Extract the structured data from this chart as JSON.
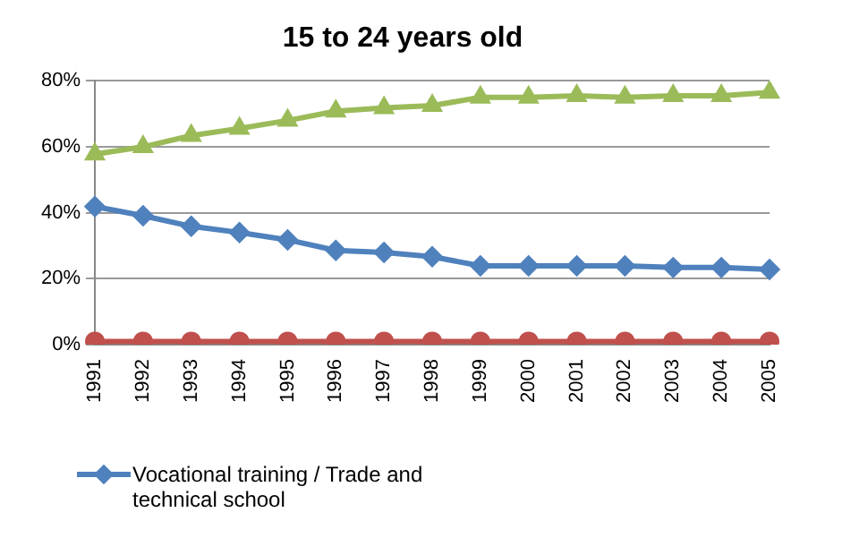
{
  "chart_data": {
    "type": "line",
    "title": "15 to 24 years old",
    "categories": [
      "1991",
      "1992",
      "1993",
      "1994",
      "1995",
      "1996",
      "1997",
      "1998",
      "1999",
      "2000",
      "2001",
      "2002",
      "2003",
      "2004",
      "2005"
    ],
    "series": [
      {
        "name": "Vocational training / Trade and technical school",
        "color": "#4f81bd",
        "marker": "diamond",
        "values": [
          41.9,
          39.1,
          35.9,
          34,
          31.8,
          28.6,
          28,
          26.7,
          23.9,
          23.9,
          23.9,
          23.9,
          23.4,
          23.4,
          22.8
        ]
      },
      {
        "color": "#c0504d",
        "marker": "circle",
        "values": [
          1,
          1,
          1,
          1,
          1,
          1,
          1,
          1,
          1,
          1,
          1,
          1,
          1,
          1,
          1
        ]
      },
      {
        "color": "#9bbb59",
        "marker": "triangle",
        "values": [
          57.8,
          60,
          63.4,
          65.6,
          68,
          70.8,
          71.8,
          72.5,
          75,
          75,
          75.5,
          75,
          75.5,
          75.5,
          76.5
        ]
      }
    ],
    "ylim": [
      0,
      80
    ],
    "yticks": [
      {
        "value": 0,
        "label": "0%"
      },
      {
        "value": 20,
        "label": "20%"
      },
      {
        "value": 40,
        "label": "40%"
      },
      {
        "value": 60,
        "label": "60%"
      },
      {
        "value": 80,
        "label": "80%"
      }
    ],
    "grid": "y",
    "legend": "bottom left"
  }
}
